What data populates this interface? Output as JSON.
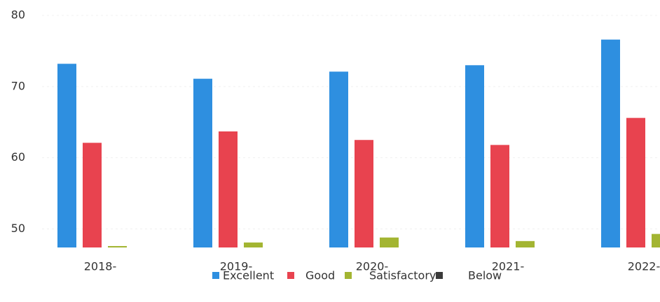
{
  "chart_data": {
    "type": "bar",
    "categories": [
      "2018-",
      "2019-",
      "2020-",
      "2021-",
      "2022-"
    ],
    "series": [
      {
        "name": "Excellent",
        "color": "#2e8fe0",
        "values": [
          73.2,
          71.1,
          72.1,
          73.0,
          76.6
        ]
      },
      {
        "name": "Good",
        "color": "#e8434f",
        "values": [
          62.1,
          63.7,
          62.5,
          61.8,
          65.6
        ]
      },
      {
        "name": "Satisfactory",
        "color": "#a3b532",
        "values": [
          47.6,
          48.1,
          48.8,
          48.3,
          49.3
        ]
      },
      {
        "name": "Below",
        "color": "#3a3a3a",
        "values": [
          null,
          null,
          null,
          null,
          null
        ]
      }
    ],
    "ylim": [
      47.4,
      80
    ],
    "yticks": [
      50,
      60,
      70,
      80
    ],
    "grid": true
  }
}
